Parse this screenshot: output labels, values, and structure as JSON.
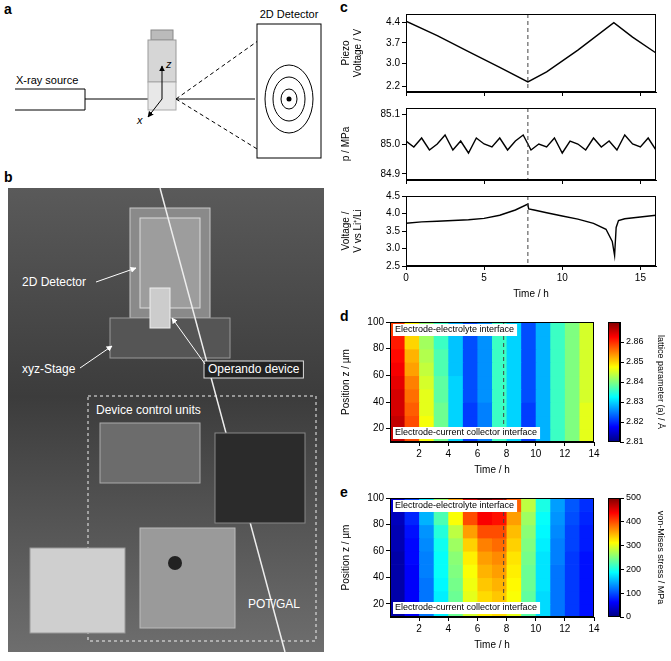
{
  "schematic": {
    "panel": "a",
    "source": "X-ray source",
    "detector": "2D Detector",
    "axes": [
      "z",
      "x"
    ]
  },
  "photo": {
    "panel": "b",
    "labels": [
      "2D Detector",
      "xyz-Stage",
      "Operando device",
      "Device control units",
      "POT/GAL"
    ]
  },
  "chart_data": [
    {
      "panel": "c",
      "type": "line",
      "ylabel": "Piezo Voltage / V",
      "x": [
        0,
        2,
        4,
        6,
        7.8,
        9,
        11,
        13.3,
        14.5,
        16
      ],
      "series": [
        {
          "color": "#000000",
          "values": [
            4.45,
            3.95,
            3.4,
            2.85,
            2.35,
            2.7,
            3.45,
            4.4,
            3.9,
            3.35
          ]
        }
      ],
      "xlim": [
        0,
        16
      ],
      "xticks": [
        0,
        5,
        10,
        15
      ],
      "ylim": [
        2.0,
        4.7
      ],
      "yticks": [
        2.2,
        {
          "value": 3,
          "label": "3.0"
        },
        3.7,
        4.4
      ],
      "grid": false,
      "tick_labels": "y",
      "vline_x": 7.8
    },
    {
      "type": "line",
      "ylabel": "p / MPa",
      "x": [
        0,
        0.5,
        1,
        1.5,
        2,
        2.5,
        3,
        3.5,
        4,
        4.5,
        5,
        5.5,
        6,
        6.5,
        7,
        7.5,
        8,
        8.5,
        9,
        9.5,
        10,
        10.5,
        11,
        11.5,
        12,
        12.5,
        13,
        13.5,
        14,
        14.5,
        15,
        15.5,
        16
      ],
      "series": [
        {
          "color": "#000000",
          "values": [
            85.01,
            84.99,
            85.02,
            84.98,
            85.0,
            85.03,
            84.98,
            85.01,
            84.97,
            85.02,
            85.0,
            84.99,
            85.02,
            84.98,
            85.01,
            85.03,
            84.98,
            85.0,
            84.99,
            85.02,
            84.97,
            85.01,
            85.0,
            84.98,
            85.02,
            84.99,
            85.01,
            84.98,
            85.03,
            85.0,
            84.99,
            85.02,
            84.98
          ]
        }
      ],
      "xlim": [
        0,
        16
      ],
      "xticks": [
        0,
        5,
        10,
        15
      ],
      "ylim": [
        84.88,
        85.12
      ],
      "yticks": [
        84.9,
        {
          "value": 85,
          "label": "85.0"
        },
        85.1
      ],
      "grid": false,
      "tick_labels": "y",
      "vline_x": 7.8
    },
    {
      "type": "line",
      "xlabel": "Time / h",
      "ylabel": "Voltage / V vs Li⁺/Li",
      "x": [
        0,
        1,
        2,
        3,
        4,
        5,
        6,
        7,
        7.8,
        7.85,
        8.2,
        9,
        10,
        11,
        12,
        12.8,
        13.2,
        13.35,
        13.45,
        13.6,
        14,
        15,
        16
      ],
      "series": [
        {
          "color": "#000000",
          "values": [
            3.72,
            3.76,
            3.78,
            3.8,
            3.82,
            3.86,
            3.95,
            4.1,
            4.27,
            4.13,
            4.1,
            4.02,
            3.93,
            3.84,
            3.72,
            3.55,
            3.2,
            2.8,
            3.6,
            3.8,
            3.85,
            3.9,
            3.95
          ]
        }
      ],
      "xlim": [
        0,
        16
      ],
      "xticks": [
        0,
        5,
        10,
        15
      ],
      "ylim": [
        2.5,
        4.5
      ],
      "yticks": [
        2.5,
        {
          "value": 3,
          "label": "3.0"
        },
        3.5,
        {
          "value": 4,
          "label": "4.0"
        },
        4.5
      ],
      "grid": false,
      "vline_x": 7.8
    },
    {
      "panel": "d",
      "type": "heatmap",
      "xlabel": "Time / h",
      "ylabel": "Position z / µm",
      "xlim": [
        0,
        14
      ],
      "xticks": [
        2,
        4,
        6,
        8,
        10,
        12,
        14
      ],
      "ylim": [
        10,
        100
      ],
      "yticks": [
        20,
        40,
        60,
        80,
        100
      ],
      "x_bins": [
        0,
        1,
        2,
        3,
        4,
        5,
        6,
        7,
        8,
        9,
        10,
        11,
        12,
        13,
        14
      ],
      "y_bins": [
        10,
        20,
        30,
        40,
        50,
        60,
        70,
        80,
        90,
        100
      ],
      "cells": [
        [
          2.866,
          2.858,
          2.847,
          2.839,
          2.83,
          2.821,
          2.825,
          2.836,
          2.83,
          2.821,
          2.828,
          2.836,
          2.84,
          2.846
        ],
        [
          2.866,
          2.858,
          2.847,
          2.839,
          2.83,
          2.821,
          2.825,
          2.836,
          2.83,
          2.821,
          2.828,
          2.836,
          2.84,
          2.846
        ],
        [
          2.865,
          2.857,
          2.846,
          2.839,
          2.83,
          2.821,
          2.825,
          2.836,
          2.83,
          2.821,
          2.828,
          2.836,
          2.84,
          2.846
        ],
        [
          2.865,
          2.856,
          2.846,
          2.838,
          2.83,
          2.822,
          2.826,
          2.836,
          2.83,
          2.822,
          2.828,
          2.836,
          2.84,
          2.845
        ],
        [
          2.864,
          2.855,
          2.845,
          2.838,
          2.83,
          2.822,
          2.826,
          2.836,
          2.83,
          2.822,
          2.828,
          2.836,
          2.84,
          2.845
        ],
        [
          2.863,
          2.853,
          2.844,
          2.837,
          2.829,
          2.822,
          2.826,
          2.836,
          2.83,
          2.822,
          2.828,
          2.836,
          2.84,
          2.845
        ],
        [
          2.862,
          2.852,
          2.843,
          2.837,
          2.829,
          2.822,
          2.826,
          2.836,
          2.83,
          2.822,
          2.828,
          2.836,
          2.84,
          2.845
        ],
        [
          2.861,
          2.85,
          2.842,
          2.836,
          2.829,
          2.822,
          2.826,
          2.836,
          2.83,
          2.822,
          2.828,
          2.836,
          2.84,
          2.845
        ],
        [
          2.859,
          2.848,
          2.841,
          2.836,
          2.828,
          2.822,
          2.826,
          2.836,
          2.83,
          2.822,
          2.828,
          2.836,
          2.84,
          2.845
        ]
      ],
      "colorbar": {
        "title": "lattice parameter (a) / Å",
        "range": [
          2.81,
          2.87
        ],
        "ticks": [
          2.81,
          2.82,
          2.83,
          2.84,
          2.85,
          2.86
        ]
      },
      "annotations": {
        "top": "Electrode-electrolyte interface",
        "bottom": "Electrode-current collector interface"
      },
      "grid": false,
      "vline_x": 7.8
    },
    {
      "panel": "e",
      "type": "heatmap",
      "xlabel": "Time / h",
      "ylabel": "Position z / µm",
      "xlim": [
        0,
        14
      ],
      "xticks": [
        2,
        4,
        6,
        8,
        10,
        12,
        14
      ],
      "ylim": [
        10,
        100
      ],
      "yticks": [
        20,
        40,
        60,
        80,
        100
      ],
      "x_bins": [
        0,
        1,
        2,
        3,
        4,
        5,
        6,
        7,
        8,
        9,
        10,
        11,
        12,
        13,
        14
      ],
      "y_bins": [
        10,
        20,
        30,
        40,
        50,
        60,
        70,
        80,
        90,
        100
      ],
      "cells": [
        [
          20,
          60,
          120,
          180,
          240,
          290,
          320,
          330,
          300,
          230,
          170,
          120,
          90,
          70
        ],
        [
          20,
          60,
          120,
          180,
          240,
          300,
          330,
          340,
          310,
          235,
          170,
          120,
          90,
          70
        ],
        [
          20,
          60,
          120,
          185,
          245,
          305,
          340,
          350,
          315,
          240,
          175,
          120,
          90,
          70
        ],
        [
          20,
          60,
          125,
          190,
          250,
          310,
          350,
          360,
          320,
          240,
          175,
          120,
          90,
          70
        ],
        [
          20,
          65,
          125,
          190,
          255,
          320,
          360,
          370,
          325,
          245,
          175,
          125,
          90,
          70
        ],
        [
          25,
          65,
          130,
          195,
          265,
          335,
          375,
          385,
          335,
          250,
          180,
          125,
          95,
          75
        ],
        [
          25,
          70,
          135,
          205,
          280,
          360,
          400,
          400,
          345,
          255,
          185,
          130,
          95,
          75
        ],
        [
          30,
          80,
          150,
          225,
          310,
          400,
          440,
          430,
          360,
          265,
          190,
          135,
          100,
          80
        ],
        [
          40,
          95,
          175,
          260,
          360,
          460,
          500,
          480,
          390,
          280,
          200,
          140,
          105,
          85
        ]
      ],
      "colorbar": {
        "title": "von-Mises stress / MPa",
        "range": [
          0,
          500
        ],
        "ticks": [
          0,
          100,
          200,
          300,
          400,
          500
        ]
      },
      "annotations": {
        "top": "Electrode-electrolyte interface",
        "bottom": "Electrode-current collector interface"
      },
      "grid": false,
      "vline_x": 7.8
    }
  ]
}
